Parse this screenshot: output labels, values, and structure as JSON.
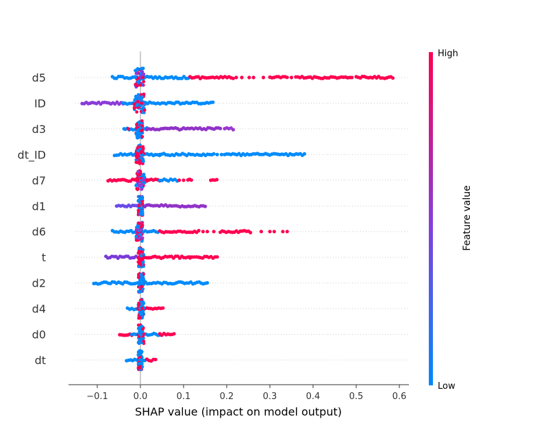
{
  "chart_data": {
    "type": "scatter",
    "subtype": "shap-beeswarm",
    "xlabel": "SHAP value (impact on model output)",
    "xlim": [
      -0.165,
      0.625
    ],
    "xticks": [
      -0.1,
      0.0,
      0.1,
      0.2,
      0.3,
      0.4,
      0.5,
      0.6
    ],
    "xtick_labels": [
      "−0.1",
      "0.0",
      "0.1",
      "0.2",
      "0.3",
      "0.4",
      "0.5",
      "0.6"
    ],
    "zero_line": 0.0,
    "grid": false,
    "colorbar": {
      "title": "Feature value",
      "high_label": "High",
      "low_label": "Low",
      "low_color": "#008bfb",
      "high_color": "#ff0051"
    },
    "features": [
      {
        "name": "d5",
        "segments": [
          {
            "from": -0.065,
            "to": 0.115,
            "color": "#008bfb"
          },
          {
            "from": 0.115,
            "to": 0.215,
            "color": "#ff0051"
          },
          {
            "from": 0.3,
            "to": 0.34,
            "color": "#ff0051"
          },
          {
            "from": 0.36,
            "to": 0.48,
            "color": "#ff0051"
          },
          {
            "from": 0.5,
            "to": 0.585,
            "color": "#ff0051"
          }
        ],
        "points": [
          {
            "x": 0.222,
            "color": "#ff0051"
          },
          {
            "x": 0.235,
            "color": "#ff0051"
          },
          {
            "x": 0.252,
            "color": "#ff0051"
          },
          {
            "x": 0.262,
            "color": "#ff0051"
          },
          {
            "x": 0.285,
            "color": "#ff0051"
          },
          {
            "x": 0.35,
            "color": "#ff0051"
          },
          {
            "x": 0.485,
            "color": "#ff0051"
          },
          {
            "x": 0.49,
            "color": "#ff0051"
          }
        ],
        "center": [
          -0.012,
          0.008,
          "#7d3fe0"
        ]
      },
      {
        "name": "ID",
        "segments": [
          {
            "from": -0.135,
            "to": -0.04,
            "color": "#8a3cd8"
          },
          {
            "from": -0.04,
            "to": 0.14,
            "color": "#008bfb"
          },
          {
            "from": 0.14,
            "to": 0.168,
            "color": "#008bfb"
          }
        ],
        "points": [],
        "center": [
          -0.015,
          0.01,
          "#2f7cf0"
        ]
      },
      {
        "name": "d3",
        "segments": [
          {
            "from": -0.035,
            "to": 0.015,
            "color": "#008bfb"
          },
          {
            "from": 0.015,
            "to": 0.185,
            "color": "#9033c8"
          },
          {
            "from": 0.195,
            "to": 0.215,
            "color": "#9a3ad0"
          }
        ],
        "points": [
          {
            "x": -0.038,
            "color": "#008bfb"
          },
          {
            "x": -0.028,
            "color": "#ff0051"
          }
        ],
        "center": [
          -0.01,
          0.005,
          "#008bfb"
        ]
      },
      {
        "name": "dt_ID",
        "segments": [
          {
            "from": -0.06,
            "to": 0.03,
            "color": "#008bfb"
          },
          {
            "from": 0.03,
            "to": 0.17,
            "color": "#008bfb"
          },
          {
            "from": 0.2,
            "to": 0.38,
            "color": "#008bfb"
          }
        ],
        "points": [
          {
            "x": 0.045,
            "color": "#008bfb"
          },
          {
            "x": 0.178,
            "color": "#008bfb"
          },
          {
            "x": 0.188,
            "color": "#008bfb"
          },
          {
            "x": 0.195,
            "color": "#008bfb"
          }
        ],
        "center": [
          -0.01,
          0.008,
          "#ff0051"
        ]
      },
      {
        "name": "d7",
        "segments": [
          {
            "from": -0.075,
            "to": 0.015,
            "color": "#ff0051"
          },
          {
            "from": 0.015,
            "to": 0.045,
            "color": "#ff0051"
          },
          {
            "from": 0.045,
            "to": 0.085,
            "color": "#008bfb"
          },
          {
            "from": 0.11,
            "to": 0.118,
            "color": "#ff0051"
          },
          {
            "from": 0.163,
            "to": 0.177,
            "color": "#ff0051"
          }
        ],
        "points": [
          {
            "x": 0.09,
            "color": "#ff0051"
          },
          {
            "x": 0.1,
            "color": "#ff0051"
          }
        ],
        "center": [
          -0.01,
          0.01,
          "#9a3ad0"
        ]
      },
      {
        "name": "d1",
        "segments": [
          {
            "from": -0.055,
            "to": 0.01,
            "color": "#6a4be8"
          },
          {
            "from": 0.01,
            "to": 0.15,
            "color": "#9033c8"
          }
        ],
        "points": [],
        "center": [
          -0.005,
          0.005,
          "#008bfb"
        ]
      },
      {
        "name": "d6",
        "segments": [
          {
            "from": -0.065,
            "to": 0.045,
            "color": "#008bfb"
          },
          {
            "from": 0.045,
            "to": 0.135,
            "color": "#ff0051"
          },
          {
            "from": 0.185,
            "to": 0.255,
            "color": "#ff0051"
          }
        ],
        "points": [
          {
            "x": 0.145,
            "color": "#ff0051"
          },
          {
            "x": 0.155,
            "color": "#ff0051"
          },
          {
            "x": 0.17,
            "color": "#ff0051"
          },
          {
            "x": 0.28,
            "color": "#ff0051"
          },
          {
            "x": 0.3,
            "color": "#ff0051"
          },
          {
            "x": 0.31,
            "color": "#ff0051"
          },
          {
            "x": 0.33,
            "color": "#ff0051"
          },
          {
            "x": 0.34,
            "color": "#ff0051"
          }
        ],
        "center": [
          -0.01,
          0.005,
          "#9a3ad0"
        ]
      },
      {
        "name": "t",
        "segments": [
          {
            "from": -0.08,
            "to": -0.01,
            "color": "#7a3ad8"
          },
          {
            "from": 0.005,
            "to": 0.115,
            "color": "#ff0051"
          },
          {
            "from": 0.115,
            "to": 0.178,
            "color": "#ff0051"
          }
        ],
        "points": [],
        "center": [
          -0.005,
          0.008,
          "#ff0051"
        ]
      },
      {
        "name": "d2",
        "segments": [
          {
            "from": -0.108,
            "to": 0.155,
            "color": "#008bfb"
          }
        ],
        "points": [],
        "center": [
          -0.005,
          0.008,
          "#008bfb"
        ]
      },
      {
        "name": "d4",
        "segments": [
          {
            "from": -0.03,
            "to": 0.01,
            "color": "#008bfb"
          },
          {
            "from": 0.01,
            "to": 0.052,
            "color": "#ff0051"
          }
        ],
        "points": [],
        "center": [
          -0.005,
          0.008,
          "#008bfb"
        ]
      },
      {
        "name": "d0",
        "segments": [
          {
            "from": -0.048,
            "to": -0.02,
            "color": "#ff0051"
          },
          {
            "from": -0.02,
            "to": 0.045,
            "color": "#008bfb"
          },
          {
            "from": 0.045,
            "to": 0.078,
            "color": "#ff0051"
          }
        ],
        "points": [],
        "center": [
          -0.005,
          0.008,
          "#008bfb"
        ]
      },
      {
        "name": "dt",
        "segments": [
          {
            "from": -0.032,
            "to": 0.015,
            "color": "#008bfb"
          },
          {
            "from": 0.015,
            "to": 0.035,
            "color": "#ff0051"
          }
        ],
        "points": [],
        "center": [
          -0.005,
          0.005,
          "#008bfb"
        ]
      }
    ]
  }
}
